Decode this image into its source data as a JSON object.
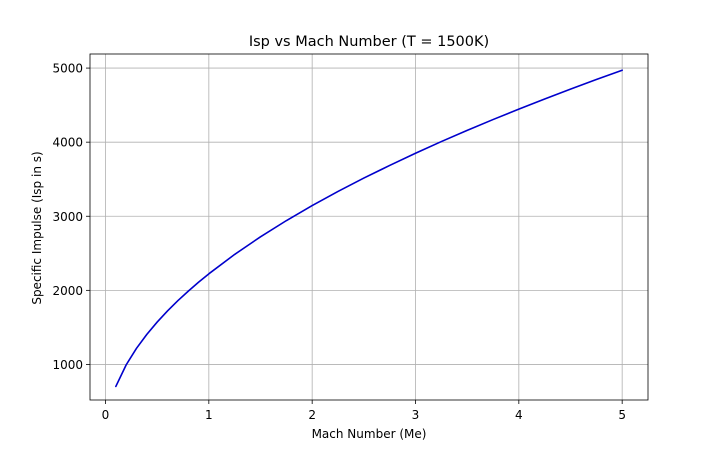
{
  "chart_data": {
    "type": "line",
    "title": "Isp vs Mach Number (T = 1500K)",
    "xlabel": "Mach Number (Me)",
    "ylabel": "Specific Impulse (Isp in s)",
    "xlim": [
      -0.15,
      5.25
    ],
    "ylim": [
      520,
      5190
    ],
    "grid": true,
    "xticks": [
      0,
      1,
      2,
      3,
      4,
      5
    ],
    "yticks": [
      1000,
      2000,
      3000,
      4000,
      5000
    ],
    "line_color": "#0000cc",
    "series": [
      {
        "name": "",
        "x": [
          0.1,
          0.2,
          0.3,
          0.4,
          0.5,
          0.6,
          0.7,
          0.8,
          0.9,
          1.0,
          1.25,
          1.5,
          1.75,
          2.0,
          2.25,
          2.5,
          2.75,
          3.0,
          3.25,
          3.5,
          3.75,
          4.0,
          4.25,
          4.5,
          4.75,
          5.0
        ],
        "y": [
          703,
          994,
          1218,
          1406,
          1572,
          1722,
          1860,
          1988,
          2109,
          2223,
          2485,
          2723,
          2941,
          3144,
          3335,
          3515,
          3686,
          3850,
          4008,
          4159,
          4305,
          4446,
          4583,
          4716,
          4845,
          4971
        ]
      }
    ]
  }
}
